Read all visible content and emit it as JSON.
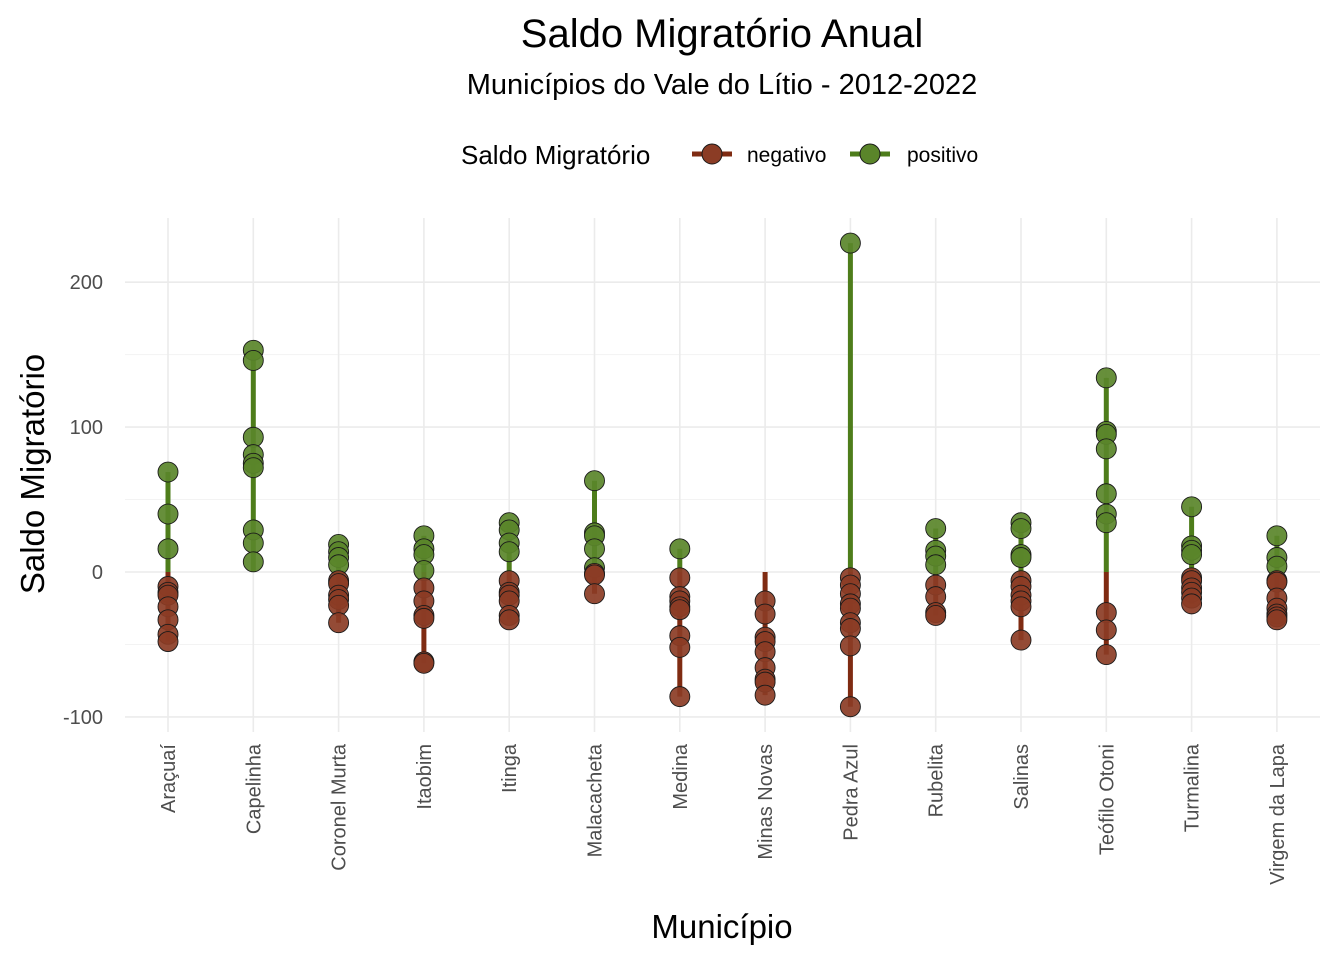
{
  "chart_data": {
    "type": "scatter",
    "title": "Saldo Migratório Anual",
    "subtitle": "Municípios do Vale do Lítio - 2012-2022",
    "xlabel": "Município",
    "ylabel": "Saldo Migratório",
    "ylim": [
      -110,
      228
    ],
    "y_ticks": [
      -100,
      0,
      100,
      200
    ],
    "y_tick_labels": [
      "-100",
      "0",
      "100",
      "200"
    ],
    "grid": true,
    "legend": {
      "title": "Saldo Migratório",
      "position": "top",
      "entries": [
        {
          "label": "negativo",
          "color": "#7f2b12"
        },
        {
          "label": "positivo",
          "color": "#4e7d1b"
        }
      ]
    },
    "colors": {
      "negativo": "#7f2b12",
      "positivo": "#4e7d1b",
      "negativo_point": "#8b3c25",
      "positivo_point": "#5a852a"
    },
    "categories": [
      "Araçuaí",
      "Capelinha",
      "Coronel Murta",
      "Itaobim",
      "Itinga",
      "Malacacheta",
      "Medina",
      "Minas Novas",
      "Pedra Azul",
      "Rubelita",
      "Salinas",
      "Teófilo Otoni",
      "Turmalina",
      "Virgem da Lapa"
    ],
    "series": [
      {
        "name": "positivo",
        "points": [
          {
            "x": "Araçuaí",
            "y": [
              69,
              40,
              16
            ]
          },
          {
            "x": "Capelinha",
            "y": [
              153,
              146,
              93,
              81,
              75,
              72,
              29,
              20,
              7
            ]
          },
          {
            "x": "Coronel Murta",
            "y": [
              19,
              14,
              10,
              5
            ]
          },
          {
            "x": "Itaobim",
            "y": [
              25,
              16,
              12,
              1
            ]
          },
          {
            "x": "Itinga",
            "y": [
              34,
              29,
              20,
              14
            ]
          },
          {
            "x": "Malacacheta",
            "y": [
              63,
              27,
              25,
              16,
              3
            ]
          },
          {
            "x": "Medina",
            "y": [
              16
            ]
          },
          {
            "x": "Minas Novas",
            "y": []
          },
          {
            "x": "Pedra Azul",
            "y": [
              227
            ]
          },
          {
            "x": "Rubelita",
            "y": [
              30,
              15,
              11,
              5
            ]
          },
          {
            "x": "Salinas",
            "y": [
              34,
              30,
              12,
              10
            ]
          },
          {
            "x": "Teófilo Otoni",
            "y": [
              134,
              97,
              95,
              85,
              54,
              40,
              34
            ]
          },
          {
            "x": "Turmalina",
            "y": [
              45,
              18,
              15,
              12
            ]
          },
          {
            "x": "Virgem da Lapa",
            "y": [
              25,
              10,
              4
            ]
          }
        ]
      },
      {
        "name": "negativo",
        "points": [
          {
            "x": "Araçuaí",
            "y": [
              -10,
              -14,
              -16,
              -24,
              -33,
              -43,
              -48
            ]
          },
          {
            "x": "Capelinha",
            "y": []
          },
          {
            "x": "Coronel Murta",
            "y": [
              -6,
              -8,
              -16,
              -19,
              -23,
              -35
            ]
          },
          {
            "x": "Itaobim",
            "y": [
              -11,
              -20,
              -30,
              -32,
              -62,
              -63
            ]
          },
          {
            "x": "Itinga",
            "y": [
              -6,
              -14,
              -16,
              -20,
              -30,
              -33
            ]
          },
          {
            "x": "Malacacheta",
            "y": [
              -1,
              -2,
              -15
            ]
          },
          {
            "x": "Medina",
            "y": [
              -4,
              -17,
              -20,
              -24,
              -26,
              -44,
              -52,
              -86
            ]
          },
          {
            "x": "Minas Novas",
            "y": [
              -20,
              -29,
              -45,
              -48,
              -55,
              -66,
              -74,
              -76,
              -85
            ]
          },
          {
            "x": "Pedra Azul",
            "y": [
              -4,
              -9,
              -15,
              -22,
              -25,
              -35,
              -39,
              -51,
              -93
            ]
          },
          {
            "x": "Rubelita",
            "y": [
              -9,
              -17,
              -28,
              -30
            ]
          },
          {
            "x": "Salinas",
            "y": [
              -6,
              -10,
              -16,
              -20,
              -24,
              -47
            ]
          },
          {
            "x": "Teófilo Otoni",
            "y": [
              -28,
              -40,
              -57
            ]
          },
          {
            "x": "Turmalina",
            "y": [
              -4,
              -6,
              -11,
              -14,
              -18,
              -22
            ]
          },
          {
            "x": "Virgem da Lapa",
            "y": [
              -6,
              -7,
              -18,
              -25,
              -29,
              -31,
              -33
            ]
          }
        ]
      }
    ]
  }
}
